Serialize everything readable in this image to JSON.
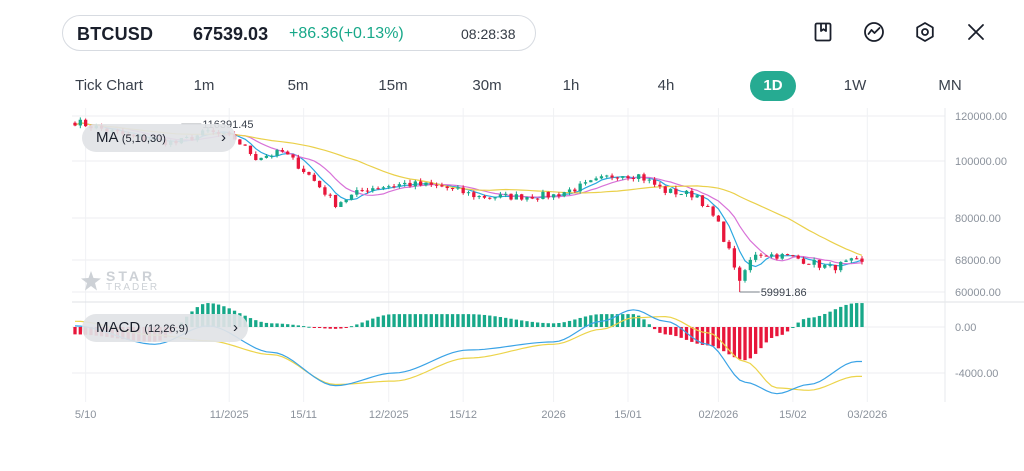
{
  "ticker": {
    "symbol": "BTCUSD",
    "price": "67539.03",
    "change": "+86.36(+0.13%)",
    "time": "08:28:38"
  },
  "toolbar": {
    "icons": [
      "bookmark-icon",
      "indicator-icon",
      "settings-icon",
      "close-icon"
    ]
  },
  "tabs": [
    "Tick Chart",
    "1m",
    "5m",
    "15m",
    "30m",
    "1h",
    "4h",
    "1D",
    "1W",
    "MN"
  ],
  "active_tab": "1D",
  "indicators": {
    "ma": {
      "name": "MA",
      "params": "(5,10,30)"
    },
    "macd": {
      "name": "MACD",
      "params": "(12,26,9)"
    }
  },
  "watermark": {
    "line1": "STAR",
    "line2": "TRADER"
  },
  "colors": {
    "up": "#17a889",
    "down": "#e8163b",
    "ma5": "#2aa8e0",
    "ma10": "#d872d8",
    "ma30": "#ead04a",
    "macd_dif": "#3aa3e6",
    "macd_dea": "#ecd44a",
    "active_tab": "#26ab92"
  },
  "chart_data": [
    {
      "type": "candlestick",
      "timeframe": "1D",
      "x_ticks": [
        "5/10",
        "11/2025",
        "15/11",
        "12/2025",
        "15/12",
        "2026",
        "15/01",
        "02/2026",
        "15/02",
        "03/2026"
      ],
      "y_ticks": [
        "120000.00",
        "100000.00",
        "80000.00",
        "68000.00",
        "60000.00"
      ],
      "y_tick_values": [
        120000,
        100000,
        80000,
        68000,
        60000
      ],
      "ylim": [
        56500,
        121500
      ],
      "annotations": [
        {
          "text": "116391.45",
          "value": 116391.45,
          "kind": "high"
        },
        {
          "text": "59991.86",
          "value": 59991.86,
          "kind": "low"
        }
      ],
      "close_path_keypoints": [
        {
          "date": "2025-10-03",
          "close": 117500
        },
        {
          "date": "2025-10-10",
          "close": 113000
        },
        {
          "date": "2025-10-14",
          "close": 110500
        },
        {
          "date": "2025-10-22",
          "close": 108000
        },
        {
          "date": "2025-10-28",
          "close": 113000
        },
        {
          "date": "2025-11-02",
          "close": 110000
        },
        {
          "date": "2025-11-06",
          "close": 101500
        },
        {
          "date": "2025-11-11",
          "close": 104000
        },
        {
          "date": "2025-11-16",
          "close": 95000
        },
        {
          "date": "2025-11-21",
          "close": 85000
        },
        {
          "date": "2025-11-27",
          "close": 90500
        },
        {
          "date": "2025-12-04",
          "close": 92000
        },
        {
          "date": "2025-12-11",
          "close": 91000
        },
        {
          "date": "2025-12-18",
          "close": 87500
        },
        {
          "date": "2025-12-25",
          "close": 87500
        },
        {
          "date": "2026-01-01",
          "close": 88000
        },
        {
          "date": "2026-01-07",
          "close": 91500
        },
        {
          "date": "2026-01-13",
          "close": 95500
        },
        {
          "date": "2026-01-17",
          "close": 95000
        },
        {
          "date": "2026-01-22",
          "close": 89500
        },
        {
          "date": "2026-01-28",
          "close": 88000
        },
        {
          "date": "2026-02-01",
          "close": 78000
        },
        {
          "date": "2026-02-05",
          "close": 63000
        },
        {
          "date": "2026-02-08",
          "close": 70000
        },
        {
          "date": "2026-02-15",
          "close": 68800
        },
        {
          "date": "2026-02-22",
          "close": 66000
        },
        {
          "date": "2026-02-26",
          "close": 67500
        }
      ],
      "series": [
        {
          "name": "MA",
          "params": "(5,10,30)",
          "lines": [
            "MA5",
            "MA10",
            "MA30"
          ]
        }
      ]
    },
    {
      "type": "bar",
      "name": "MACD",
      "params": "(12,26,9)",
      "y_ticks": [
        "0.00",
        "-4000.00"
      ],
      "y_tick_values": [
        0,
        -4000
      ],
      "ylim": [
        -6000,
        1700
      ],
      "dif_keypoints": [
        {
          "date": "2025-10-03",
          "value": 100
        },
        {
          "date": "2025-10-18",
          "value": -1500
        },
        {
          "date": "2025-10-28",
          "value": 100
        },
        {
          "date": "2025-11-09",
          "value": -2200
        },
        {
          "date": "2025-11-21",
          "value": -5100
        },
        {
          "date": "2025-12-02",
          "value": -4000
        },
        {
          "date": "2025-12-16",
          "value": -2000
        },
        {
          "date": "2026-01-01",
          "value": -1300
        },
        {
          "date": "2026-01-10",
          "value": 500
        },
        {
          "date": "2026-01-16",
          "value": 1500
        },
        {
          "date": "2026-01-22",
          "value": 500
        },
        {
          "date": "2026-01-30",
          "value": -1500
        },
        {
          "date": "2026-02-06",
          "value": -4800
        },
        {
          "date": "2026-02-12",
          "value": -5800
        },
        {
          "date": "2026-02-18",
          "value": -5000
        },
        {
          "date": "2026-02-27",
          "value": -3000
        }
      ],
      "dea_keypoints": [
        {
          "date": "2025-10-03",
          "value": 500
        },
        {
          "date": "2025-10-18",
          "value": -700
        },
        {
          "date": "2025-10-28",
          "value": -1200
        },
        {
          "date": "2025-11-09",
          "value": -2400
        },
        {
          "date": "2025-11-21",
          "value": -5000
        },
        {
          "date": "2025-12-02",
          "value": -4700
        },
        {
          "date": "2025-12-16",
          "value": -2700
        },
        {
          "date": "2026-01-01",
          "value": -1500
        },
        {
          "date": "2026-01-10",
          "value": -200
        },
        {
          "date": "2026-01-16",
          "value": 800
        },
        {
          "date": "2026-01-22",
          "value": 900
        },
        {
          "date": "2026-01-30",
          "value": -500
        },
        {
          "date": "2026-02-06",
          "value": -3000
        },
        {
          "date": "2026-02-12",
          "value": -5300
        },
        {
          "date": "2026-02-18",
          "value": -5500
        },
        {
          "date": "2026-02-27",
          "value": -4300
        }
      ]
    }
  ]
}
